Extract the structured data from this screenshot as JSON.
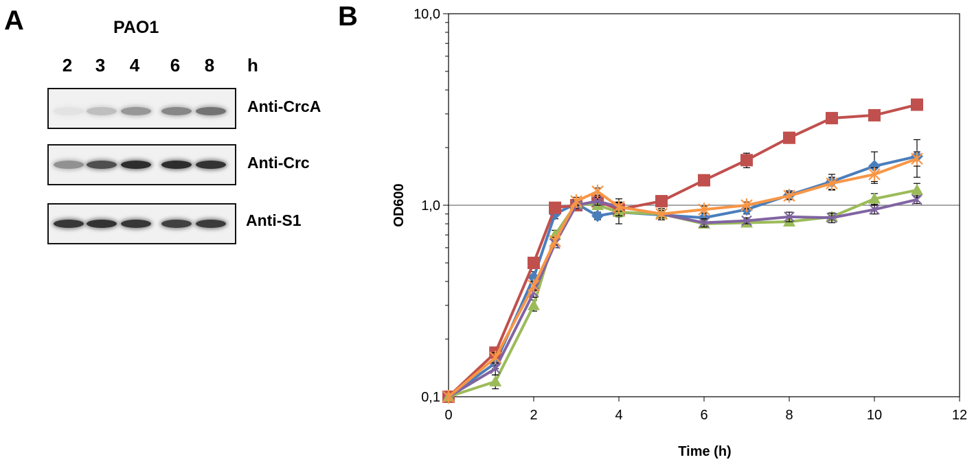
{
  "panel_a": {
    "letter": "A",
    "strain": "PAO1",
    "hours": [
      "2",
      "3",
      "4",
      "6",
      "8"
    ],
    "hour_unit": "h",
    "blots": [
      {
        "label": "Anti-CrcA",
        "intensities": [
          0.04,
          0.22,
          0.42,
          0.5,
          0.6
        ]
      },
      {
        "label": "Anti-Crc",
        "intensities": [
          0.45,
          0.78,
          0.95,
          0.95,
          0.92
        ]
      },
      {
        "label": "Anti-S1",
        "intensities": [
          0.9,
          0.92,
          0.9,
          0.85,
          0.88
        ]
      }
    ]
  },
  "panel_b": {
    "letter": "B"
  },
  "chart_data": {
    "type": "line",
    "title": "",
    "xlabel": "Time (h)",
    "ylabel": "OD600",
    "xlim": [
      0,
      12
    ],
    "ylim": [
      0.1,
      10
    ],
    "yscale": "log",
    "xticks": [
      0,
      2,
      4,
      6,
      8,
      10,
      12
    ],
    "xtick_labels": [
      "0",
      "2",
      "4",
      "6",
      "8",
      "10",
      "12"
    ],
    "yticks": [
      0.1,
      1,
      10
    ],
    "ytick_labels": [
      "0,1",
      "1,0",
      "10,0"
    ],
    "reference_line": 1.0,
    "series": [
      {
        "name": "blue",
        "color": "#4a7ebb",
        "marker": "diamond",
        "x": [
          0,
          1.1,
          2,
          2.5,
          3,
          3.5,
          4,
          5,
          6,
          7,
          8,
          9,
          10,
          11
        ],
        "y": [
          0.1,
          0.15,
          0.42,
          0.9,
          1.02,
          0.88,
          0.92,
          0.89,
          0.86,
          0.95,
          1.13,
          1.33,
          1.6,
          1.8
        ],
        "err": [
          0,
          0.01,
          0.03,
          0.05,
          0.05,
          0.04,
          0.05,
          0.05,
          0.05,
          0.05,
          0.06,
          0.12,
          0.3,
          0.4
        ]
      },
      {
        "name": "red",
        "color": "#c0504d",
        "marker": "square",
        "x": [
          0,
          1.1,
          2,
          2.5,
          3,
          3.5,
          4,
          5,
          6,
          7,
          8,
          9,
          10,
          11
        ],
        "y": [
          0.1,
          0.17,
          0.5,
          0.97,
          1.0,
          1.05,
          0.95,
          1.05,
          1.35,
          1.72,
          2.25,
          2.85,
          2.95,
          3.35
        ],
        "err": [
          0,
          0.01,
          0.02,
          0.03,
          0.03,
          0.03,
          0.03,
          0.03,
          0.05,
          0.15,
          0.08,
          0.08,
          0.08,
          0.08
        ]
      },
      {
        "name": "green",
        "color": "#9bbb59",
        "marker": "triangle",
        "x": [
          0,
          1.1,
          2,
          2.5,
          3,
          3.5,
          4,
          5,
          6,
          7,
          8,
          9,
          10,
          11
        ],
        "y": [
          0.1,
          0.12,
          0.3,
          0.7,
          1.02,
          1.0,
          0.92,
          0.9,
          0.8,
          0.81,
          0.82,
          0.87,
          1.08,
          1.2
        ],
        "err": [
          0,
          0.01,
          0.02,
          0.04,
          0.05,
          0.05,
          0.12,
          0.06,
          0.04,
          0.03,
          0.04,
          0.04,
          0.07,
          0.1
        ]
      },
      {
        "name": "purple",
        "color": "#8064a2",
        "marker": "x",
        "x": [
          0,
          1.1,
          2,
          2.5,
          3,
          3.5,
          4,
          5,
          6,
          7,
          8,
          9,
          10,
          11
        ],
        "y": [
          0.1,
          0.14,
          0.35,
          0.63,
          1.0,
          1.05,
          0.98,
          0.9,
          0.81,
          0.83,
          0.87,
          0.86,
          0.95,
          1.07
        ],
        "err": [
          0,
          0.01,
          0.02,
          0.03,
          0.04,
          0.05,
          0.1,
          0.06,
          0.04,
          0.03,
          0.05,
          0.05,
          0.05,
          0.05
        ]
      },
      {
        "name": "orange",
        "color": "#f79646",
        "marker": "star",
        "x": [
          0,
          1.1,
          2,
          2.5,
          3,
          3.5,
          4,
          5,
          6,
          7,
          8,
          9,
          10,
          11
        ],
        "y": [
          0.1,
          0.16,
          0.38,
          0.65,
          1.05,
          1.18,
          0.98,
          0.9,
          0.95,
          1.0,
          1.12,
          1.3,
          1.45,
          1.75
        ],
        "err": [
          0,
          0.01,
          0.02,
          0.03,
          0.05,
          0.05,
          0.05,
          0.04,
          0.04,
          0.04,
          0.05,
          0.1,
          0.12,
          0.15
        ]
      }
    ]
  }
}
